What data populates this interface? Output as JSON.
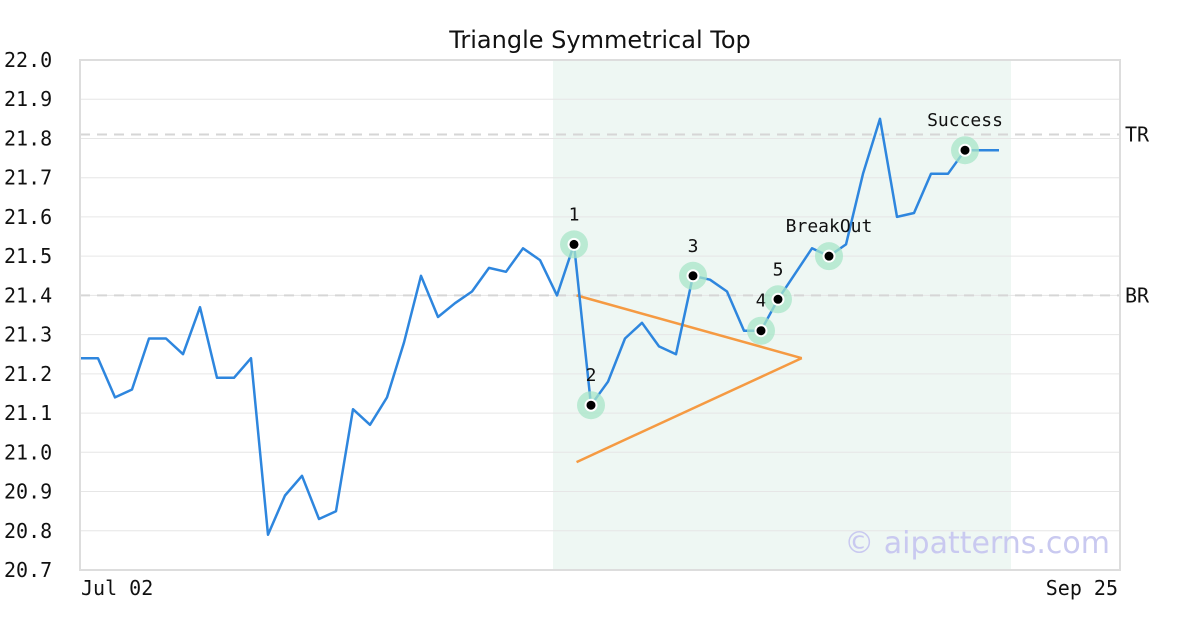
{
  "chart_data": {
    "type": "line",
    "title": "Triangle Symmetrical Top",
    "xlabel": "",
    "ylabel": "",
    "ylim": [
      20.7,
      22.0
    ],
    "yticks": [
      "22.0",
      "21.9",
      "21.8",
      "21.7",
      "21.6",
      "21.5",
      "21.4",
      "21.3",
      "21.2",
      "21.1",
      "21.0",
      "20.9",
      "20.8",
      "20.7"
    ],
    "x_tick_labels": {
      "start": "Jul 02",
      "end": "Sep 25"
    },
    "grid": true,
    "series": [
      {
        "values": [
          21.24,
          21.24,
          21.14,
          21.16,
          21.29,
          21.29,
          21.25,
          21.37,
          21.19,
          21.19,
          21.24,
          20.79,
          20.89,
          20.94,
          20.83,
          20.85,
          21.11,
          21.07,
          21.14,
          21.28,
          21.45,
          21.345,
          21.38,
          21.41,
          21.47,
          21.46,
          21.52,
          21.49,
          21.4,
          21.53,
          21.12,
          21.18,
          21.29,
          21.33,
          21.27,
          21.25,
          21.45,
          21.44,
          21.41,
          21.31,
          21.31,
          21.39,
          21.455,
          21.52,
          21.5,
          21.53,
          21.71,
          21.85,
          21.6,
          21.61,
          21.71,
          21.71,
          21.77,
          21.77,
          21.77
        ],
        "color": "#2e86de"
      }
    ],
    "highlight_range": {
      "from_index": 27,
      "to_index": 54,
      "color": "#eef7f3"
    },
    "reference_lines": [
      {
        "label": "TR",
        "value": 21.81
      },
      {
        "label": "BR",
        "value": 21.4
      }
    ],
    "triangle": {
      "color": "#f59a42",
      "upper": [
        {
          "index": 29.15,
          "value": 21.4
        },
        {
          "index": 42.4,
          "value": 21.24
        }
      ],
      "lower": [
        {
          "index": 29.15,
          "value": 20.975
        },
        {
          "index": 42.4,
          "value": 21.24
        }
      ]
    },
    "points": [
      {
        "label": "1",
        "index": 29,
        "value": 21.53,
        "label_pos": "above"
      },
      {
        "label": "2",
        "index": 30,
        "value": 21.12,
        "label_pos": "above"
      },
      {
        "label": "3",
        "index": 36,
        "value": 21.45,
        "label_pos": "above"
      },
      {
        "label": "4",
        "index": 40,
        "value": 21.31,
        "label_pos": "above"
      },
      {
        "label": "5",
        "index": 41,
        "value": 21.39,
        "label_pos": "above"
      },
      {
        "label": "BreakOut",
        "index": 44,
        "value": 21.5,
        "label_pos": "above"
      },
      {
        "label": "Success",
        "index": 52,
        "value": 21.77,
        "label_pos": "above"
      }
    ],
    "watermark": "© aipatterns.com"
  }
}
